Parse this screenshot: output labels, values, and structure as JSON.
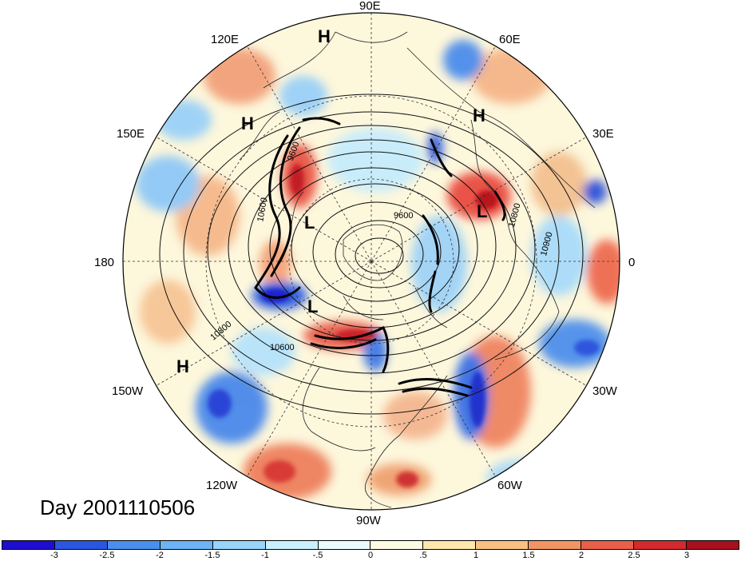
{
  "map": {
    "projection": "north-polar-stereographic",
    "longitude_labels": {
      "lon_90E": "90E",
      "lon_60E": "60E",
      "lon_30E": "30E",
      "lon_0": "0",
      "lon_30W": "30W",
      "lon_60W": "60W",
      "lon_90W": "90W",
      "lon_120W": "120W",
      "lon_150W": "150W",
      "lon_180": "180",
      "lon_150E": "150E",
      "lon_120E": "120E"
    },
    "pressure_centers": {
      "h1": "H",
      "h2": "H",
      "h3": "H",
      "h4": "H",
      "l1": "L",
      "l2": "L",
      "l3": "L"
    },
    "contour_labels": {
      "c9600": "9600",
      "c10600": "10600",
      "c10800a": "10800",
      "c10800b": "10800",
      "c10900": "10900",
      "c_10600_side": "10600",
      "c_9600_side": "9600"
    },
    "day_label": "Day 2001110506"
  },
  "colorbar": {
    "colors": [
      "#1e0fcf",
      "#2a57e0",
      "#4a8fee",
      "#6cb4f5",
      "#9ad4fb",
      "#c8f0fd",
      "#eafbfe",
      "#fdfbe2",
      "#fde7ac",
      "#f8c182",
      "#f29463",
      "#ea5f4a",
      "#d32a2e",
      "#a8101c"
    ],
    "ticks": [
      "-3",
      "-2.5",
      "-2",
      "-1.5",
      "-1",
      "-.5",
      "0",
      ".5",
      "1",
      "1.5",
      "2",
      "2.5",
      "3"
    ]
  }
}
